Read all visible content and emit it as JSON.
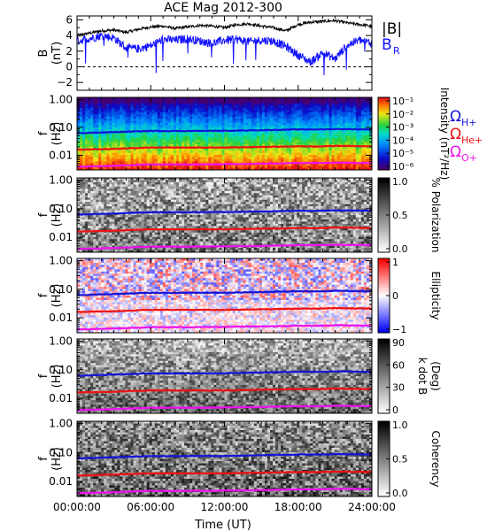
{
  "title": "ACE Mag 2012-300",
  "xlabel": "Time (UT)",
  "colors": {
    "B_total": "#000000",
    "B_R": "#1010ff",
    "cyc_H": "#1414d8",
    "cyc_He": "#ee1111",
    "cyc_O": "#ee11ee"
  },
  "chart_data": [
    {
      "type": "line",
      "panel": "field",
      "ylabel_top": "B",
      "ylabel_bottom": "(nT)",
      "ylim": [
        -3,
        6.5
      ],
      "yticks": [
        "6",
        "4",
        "2",
        "0",
        "−2"
      ],
      "ytick_values": [
        6,
        4,
        2,
        0,
        -2
      ],
      "xticks": [
        "00:00:00",
        "06:00:00",
        "12:00:00",
        "18:00:00",
        "24:00:00"
      ],
      "xtick_hours": [
        0,
        6,
        12,
        18,
        24
      ],
      "xlim": [
        0,
        24
      ],
      "x_hours": [
        0,
        1,
        2,
        3,
        4,
        5,
        6,
        7,
        8,
        9,
        10,
        11,
        12,
        13,
        14,
        15,
        16,
        17,
        18,
        19,
        20,
        21,
        22,
        23,
        24
      ],
      "series": [
        {
          "name": "|B|",
          "values": [
            4.0,
            4.3,
            4.6,
            4.7,
            4.4,
            4.8,
            5.1,
            5.2,
            4.9,
            5.1,
            5.3,
            5.2,
            5.0,
            5.4,
            5.5,
            5.2,
            5.0,
            4.6,
            5.4,
            5.7,
            5.8,
            5.9,
            5.6,
            5.4,
            5.2
          ]
        },
        {
          "name": "B_R",
          "values": [
            3.3,
            3.6,
            4.0,
            3.7,
            2.4,
            2.3,
            2.7,
            3.5,
            3.4,
            3.6,
            3.3,
            3.0,
            3.4,
            3.5,
            3.2,
            3.4,
            3.3,
            2.6,
            1.5,
            0.6,
            1.8,
            1.0,
            2.8,
            3.4,
            3.0
          ]
        }
      ],
      "legend": [
        "|B|",
        "B",
        "R"
      ]
    },
    {
      "type": "heatmap",
      "panel": "intensity",
      "ylabel_top": "f",
      "ylabel_bottom": "(Hz)",
      "yticks": [
        "1.00",
        "0.10",
        "0.01"
      ],
      "ytick_values": [
        1.0,
        0.1,
        0.01
      ],
      "ylim": [
        0.003,
        1.2
      ],
      "scale": "log",
      "colorbar_label": "Intensity (nT²/Hz)",
      "colorbar_ticks": [
        "10⁻¹",
        "10⁻²",
        "10⁻³",
        "10⁻⁴",
        "10⁻⁵",
        "10⁻⁶"
      ],
      "colorbar_range": [
        -6,
        -1
      ],
      "legend": [
        "Ω",
        "H+",
        "Ω",
        "He+",
        "Ω",
        "O+"
      ]
    },
    {
      "type": "heatmap",
      "panel": "polarization",
      "ylabel_top": "f",
      "ylabel_bottom": "(Hz)",
      "yticks": [
        "1.00",
        "0.10",
        "0.01"
      ],
      "ytick_values": [
        1.0,
        0.1,
        0.01
      ],
      "colorbar_label": "% Polarization",
      "colorbar_ticks": [
        "1.0",
        "0.5",
        "0.0"
      ],
      "colorbar_range": [
        0,
        1
      ]
    },
    {
      "type": "heatmap",
      "panel": "ellipticity",
      "ylabel_top": "f",
      "ylabel_bottom": "(Hz)",
      "yticks": [
        "1.00",
        "0.10",
        "0.01"
      ],
      "ytick_values": [
        1.0,
        0.1,
        0.01
      ],
      "colorbar_label": "Ellipticity",
      "colorbar_ticks": [
        "1",
        "0",
        "−1"
      ],
      "colorbar_range": [
        -1,
        1
      ]
    },
    {
      "type": "heatmap",
      "panel": "kdotb",
      "ylabel_top": "f",
      "ylabel_bottom": "(Hz)",
      "yticks": [
        "1.00",
        "0.10",
        "0.01"
      ],
      "ytick_values": [
        1.0,
        0.1,
        0.01
      ],
      "colorbar_label_1": "k dot B",
      "colorbar_label_2": "(Deg)",
      "colorbar_ticks": [
        "90",
        "60",
        "30",
        "0"
      ],
      "colorbar_range": [
        0,
        90
      ]
    },
    {
      "type": "heatmap",
      "panel": "coherency",
      "ylabel_top": "f",
      "ylabel_bottom": "(Hz)",
      "yticks": [
        "1.00",
        "0.10",
        "0.01"
      ],
      "ytick_values": [
        1.0,
        0.1,
        0.01
      ],
      "colorbar_label": "Coherency",
      "colorbar_ticks": [
        "1.0",
        "0.5",
        "0.0"
      ],
      "colorbar_range": [
        0,
        1
      ],
      "xticks": [
        "00:00:00",
        "06:00:00",
        "12:00:00",
        "18:00:00",
        "24:00:00"
      ],
      "xtick_hours": [
        0,
        6,
        12,
        18,
        24
      ]
    }
  ],
  "cyclotron_freqs_hz": {
    "x_hours": [
      0,
      3,
      6,
      9,
      12,
      15,
      18,
      20,
      21,
      24
    ],
    "H+": [
      0.062,
      0.068,
      0.075,
      0.075,
      0.076,
      0.08,
      0.085,
      0.085,
      0.088,
      0.085
    ],
    "He+": [
      0.016,
      0.017,
      0.019,
      0.019,
      0.019,
      0.02,
      0.021,
      0.021,
      0.022,
      0.021
    ],
    "O+": [
      0.0039,
      0.0042,
      0.0047,
      0.0047,
      0.0048,
      0.005,
      0.0053,
      0.0053,
      0.0055,
      0.0053
    ]
  }
}
